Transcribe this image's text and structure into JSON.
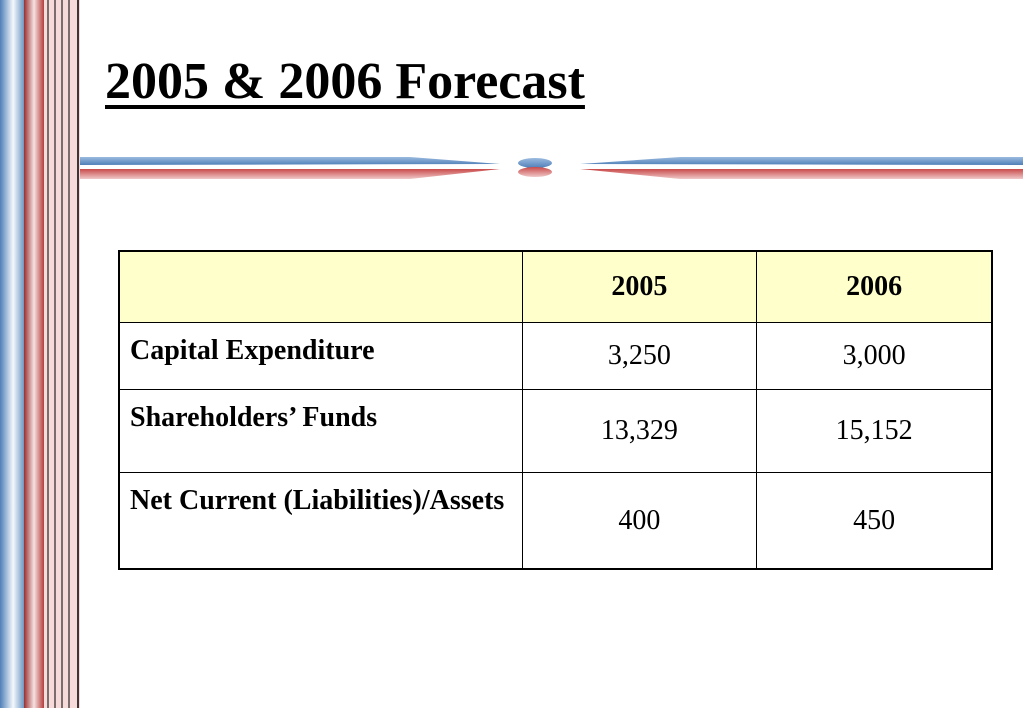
{
  "slide": {
    "title": "2005 & 2006 Forecast"
  },
  "table": {
    "headers": [
      "",
      "2005",
      "2006"
    ],
    "rows": [
      {
        "label": "Capital Expenditure",
        "values": [
          "3,250",
          "3,000"
        ]
      },
      {
        "label": "Shareholders’ Funds",
        "values": [
          "13,329",
          "15,152"
        ]
      },
      {
        "label": "Net Current (Liabilities)/Assets",
        "values": [
          "400",
          "450"
        ]
      }
    ]
  },
  "colors": {
    "header_fill": "#ffffcc",
    "stripe_blue": "#6f98c4",
    "stripe_red": "#b43c3c"
  }
}
